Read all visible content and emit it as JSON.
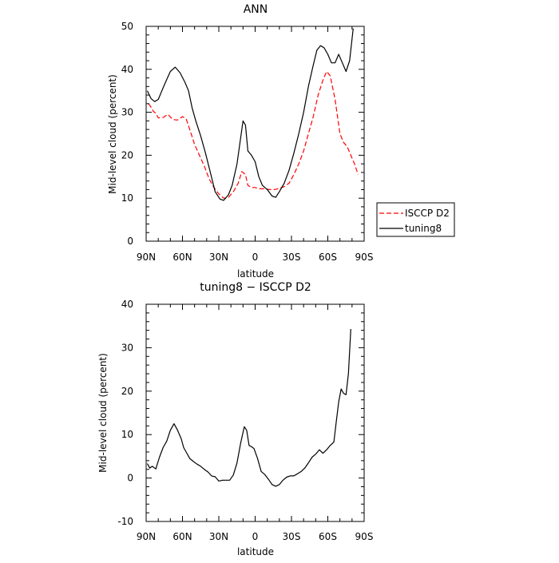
{
  "chart_data": [
    {
      "type": "line",
      "title": "ANN",
      "xlabel": "latitude",
      "ylabel": "Mid-level cloud (percent)",
      "x_tick_labels": [
        "90N",
        "60N",
        "30N",
        "0",
        "30S",
        "60S",
        "90S"
      ],
      "x_ticks": [
        -90,
        -60,
        -30,
        0,
        30,
        60,
        90
      ],
      "xlim": [
        -90,
        90
      ],
      "ylim": [
        0,
        50
      ],
      "y_ticks": [
        0,
        10,
        20,
        30,
        40,
        50
      ],
      "grid": false,
      "legend_position": "right",
      "series": [
        {
          "name": "ISCCP D2",
          "color": "#ff0000",
          "dash": "dashed",
          "points": [
            [
              -88,
              32
            ],
            [
              -86,
              31.2
            ],
            [
              -84,
              30.2
            ],
            [
              -82,
              29.8
            ],
            [
              -80,
              28.7
            ],
            [
              -76,
              28.8
            ],
            [
              -72,
              29.5
            ],
            [
              -68,
              28.3
            ],
            [
              -64,
              28.2
            ],
            [
              -60,
              29
            ],
            [
              -57,
              28.5
            ],
            [
              -54,
              26
            ],
            [
              -50,
              22.5
            ],
            [
              -46,
              20
            ],
            [
              -42,
              17.5
            ],
            [
              -38,
              14.5
            ],
            [
              -34,
              12.5
            ],
            [
              -30,
              11
            ],
            [
              -26,
              10
            ],
            [
              -22,
              10.2
            ],
            [
              -18,
              11.5
            ],
            [
              -14,
              13.5
            ],
            [
              -11,
              16.2
            ],
            [
              -8,
              15.5
            ],
            [
              -6,
              13
            ],
            [
              -3,
              12.5
            ],
            [
              0,
              12.5
            ],
            [
              4,
              12.2
            ],
            [
              8,
              12.2
            ],
            [
              12,
              12
            ],
            [
              16,
              12
            ],
            [
              20,
              12.3
            ],
            [
              24,
              12.7
            ],
            [
              28,
              13.5
            ],
            [
              32,
              15.5
            ],
            [
              36,
              18
            ],
            [
              40,
              21
            ],
            [
              44,
              25
            ],
            [
              48,
              29
            ],
            [
              52,
              34
            ],
            [
              56,
              37.5
            ],
            [
              59,
              39.5
            ],
            [
              62,
              38.5
            ],
            [
              66,
              33
            ],
            [
              70,
              25
            ],
            [
              73,
              23
            ],
            [
              76,
              22
            ],
            [
              79,
              20
            ],
            [
              82,
              18
            ],
            [
              85,
              15.5
            ]
          ]
        },
        {
          "name": "tuning8",
          "color": "#000000",
          "dash": "solid",
          "points": [
            [
              -89,
              35
            ],
            [
              -86,
              33.2
            ],
            [
              -83,
              32.5
            ],
            [
              -80,
              33
            ],
            [
              -77,
              35
            ],
            [
              -74,
              37
            ],
            [
              -70,
              39.5
            ],
            [
              -66,
              40.5
            ],
            [
              -62,
              39.2
            ],
            [
              -58,
              37
            ],
            [
              -55,
              35
            ],
            [
              -52,
              31
            ],
            [
              -49,
              28
            ],
            [
              -45,
              24.5
            ],
            [
              -41,
              20.5
            ],
            [
              -37,
              16
            ],
            [
              -33,
              11.5
            ],
            [
              -29,
              9.8
            ],
            [
              -26,
              9.5
            ],
            [
              -22,
              10.8
            ],
            [
              -19,
              13
            ],
            [
              -15,
              18
            ],
            [
              -12,
              24
            ],
            [
              -10,
              28
            ],
            [
              -8,
              27
            ],
            [
              -6,
              21
            ],
            [
              -3,
              20
            ],
            [
              0,
              18.5
            ],
            [
              3,
              15
            ],
            [
              6,
              13
            ],
            [
              10,
              12
            ],
            [
              14,
              10.5
            ],
            [
              17,
              10.2
            ],
            [
              20,
              11.5
            ],
            [
              24,
              13.5
            ],
            [
              28,
              16.5
            ],
            [
              32,
              20.5
            ],
            [
              36,
              25
            ],
            [
              40,
              30
            ],
            [
              44,
              36
            ],
            [
              48,
              41
            ],
            [
              51,
              44.5
            ],
            [
              54,
              45.5
            ],
            [
              57,
              45
            ],
            [
              60,
              43.5
            ],
            [
              63,
              41.5
            ],
            [
              66,
              41.5
            ],
            [
              69,
              43.5
            ],
            [
              72,
              41.5
            ],
            [
              75,
              39.5
            ],
            [
              78,
              42
            ],
            [
              81,
              49.5
            ]
          ]
        }
      ]
    },
    {
      "type": "line",
      "title": "tuning8 − ISCCP D2",
      "xlabel": "latitude",
      "ylabel": "Mid-level cloud (percent)",
      "x_tick_labels": [
        "90N",
        "60N",
        "30N",
        "0",
        "30S",
        "60S",
        "90S"
      ],
      "x_ticks": [
        -90,
        -60,
        -30,
        0,
        30,
        60,
        90
      ],
      "xlim": [
        -90,
        90
      ],
      "ylim": [
        -10,
        40
      ],
      "y_ticks": [
        -10,
        0,
        10,
        20,
        30,
        40
      ],
      "grid": false,
      "series": [
        {
          "color": "#000000",
          "dash": "solid",
          "points": [
            [
              -89,
              3.3
            ],
            [
              -87,
              2.3
            ],
            [
              -85,
              2.7
            ],
            [
              -82,
              2.1
            ],
            [
              -79,
              4.8
            ],
            [
              -76,
              7
            ],
            [
              -73,
              8.5
            ],
            [
              -70,
              11
            ],
            [
              -67,
              12.5
            ],
            [
              -64,
              11
            ],
            [
              -61,
              9
            ],
            [
              -59,
              7
            ],
            [
              -57,
              6
            ],
            [
              -54,
              4.5
            ],
            [
              -51,
              3.8
            ],
            [
              -48,
              3.2
            ],
            [
              -45,
              2.7
            ],
            [
              -42,
              2
            ],
            [
              -39,
              1.4
            ],
            [
              -36,
              0.5
            ],
            [
              -33,
              0.3
            ],
            [
              -30,
              -0.7
            ],
            [
              -27,
              -0.5
            ],
            [
              -24,
              -0.5
            ],
            [
              -21,
              -0.5
            ],
            [
              -18,
              0.7
            ],
            [
              -15,
              3.5
            ],
            [
              -12,
              8
            ],
            [
              -9,
              11.8
            ],
            [
              -7,
              11
            ],
            [
              -5,
              7.5
            ],
            [
              -3,
              7.2
            ],
            [
              -1,
              6.8
            ],
            [
              2,
              4.5
            ],
            [
              5,
              1.5
            ],
            [
              8,
              0.8
            ],
            [
              11,
              -0.3
            ],
            [
              14,
              -1.5
            ],
            [
              17,
              -1.9
            ],
            [
              20,
              -1.5
            ],
            [
              23,
              -0.5
            ],
            [
              26,
              0.2
            ],
            [
              29,
              0.5
            ],
            [
              32,
              0.5
            ],
            [
              35,
              1
            ],
            [
              38,
              1.5
            ],
            [
              41,
              2.3
            ],
            [
              44,
              3.5
            ],
            [
              47,
              4.8
            ],
            [
              50,
              5.5
            ],
            [
              53,
              6.5
            ],
            [
              56,
              5.7
            ],
            [
              59,
              6.5
            ],
            [
              62,
              7.5
            ],
            [
              65,
              8.3
            ],
            [
              67,
              13
            ],
            [
              69,
              17.5
            ],
            [
              71,
              20.5
            ],
            [
              73,
              19.5
            ],
            [
              75,
              19.2
            ],
            [
              77,
              24
            ],
            [
              79,
              34.3
            ]
          ]
        }
      ]
    }
  ]
}
